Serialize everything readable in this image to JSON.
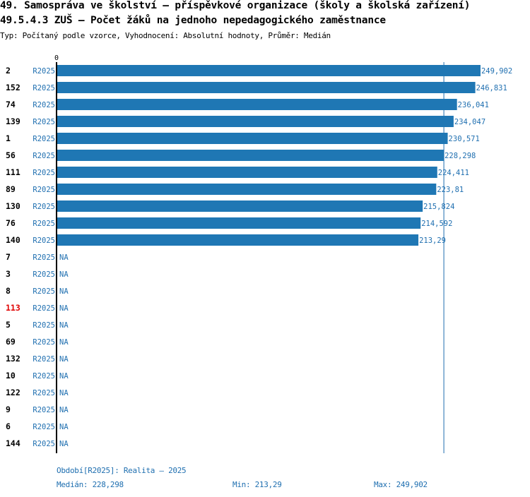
{
  "header": {
    "title_line1": "49. Samospráva ve školství – příspěvkové organizace (školy a školská zařízení)",
    "title_line2": "49.5.4.3 ZUŠ – Počet žáků na jednoho nepedagogického zaměstnance",
    "subtitle": "Typ: Počítaný podle vzorce, Vyhodnocení: Absolutní hodnoty, Průměr: Medián"
  },
  "chart_data": {
    "type": "bar",
    "orientation": "horizontal",
    "axis_zero_label": "0",
    "xlim": [
      0,
      252
    ],
    "series_label": "R2025",
    "median": 228.298,
    "highlight_color": "#e00000",
    "bar_color": "#1f77b4",
    "label_color": "#1f6fb0",
    "rows": [
      {
        "id": "2",
        "series": "R2025",
        "value": 249.902,
        "label": "249,902",
        "highlight": false
      },
      {
        "id": "152",
        "series": "R2025",
        "value": 246.831,
        "label": "246,831",
        "highlight": false
      },
      {
        "id": "74",
        "series": "R2025",
        "value": 236.041,
        "label": "236,041",
        "highlight": false
      },
      {
        "id": "139",
        "series": "R2025",
        "value": 234.047,
        "label": "234,047",
        "highlight": false
      },
      {
        "id": "1",
        "series": "R2025",
        "value": 230.571,
        "label": "230,571",
        "highlight": false
      },
      {
        "id": "56",
        "series": "R2025",
        "value": 228.298,
        "label": "228,298",
        "highlight": false
      },
      {
        "id": "111",
        "series": "R2025",
        "value": 224.411,
        "label": "224,411",
        "highlight": false
      },
      {
        "id": "89",
        "series": "R2025",
        "value": 223.81,
        "label": "223,81",
        "highlight": false
      },
      {
        "id": "130",
        "series": "R2025",
        "value": 215.824,
        "label": "215,824",
        "highlight": false
      },
      {
        "id": "76",
        "series": "R2025",
        "value": 214.592,
        "label": "214,592",
        "highlight": false
      },
      {
        "id": "140",
        "series": "R2025",
        "value": 213.29,
        "label": "213,29",
        "highlight": false
      },
      {
        "id": "7",
        "series": "R2025",
        "value": null,
        "label": "NA",
        "highlight": false
      },
      {
        "id": "3",
        "series": "R2025",
        "value": null,
        "label": "NA",
        "highlight": false
      },
      {
        "id": "8",
        "series": "R2025",
        "value": null,
        "label": "NA",
        "highlight": false
      },
      {
        "id": "113",
        "series": "R2025",
        "value": null,
        "label": "NA",
        "highlight": true
      },
      {
        "id": "5",
        "series": "R2025",
        "value": null,
        "label": "NA",
        "highlight": false
      },
      {
        "id": "69",
        "series": "R2025",
        "value": null,
        "label": "NA",
        "highlight": false
      },
      {
        "id": "132",
        "series": "R2025",
        "value": null,
        "label": "NA",
        "highlight": false
      },
      {
        "id": "10",
        "series": "R2025",
        "value": null,
        "label": "NA",
        "highlight": false
      },
      {
        "id": "122",
        "series": "R2025",
        "value": null,
        "label": "NA",
        "highlight": false
      },
      {
        "id": "9",
        "series": "R2025",
        "value": null,
        "label": "NA",
        "highlight": false
      },
      {
        "id": "6",
        "series": "R2025",
        "value": null,
        "label": "NA",
        "highlight": false
      },
      {
        "id": "144",
        "series": "R2025",
        "value": null,
        "label": "NA",
        "highlight": false
      }
    ]
  },
  "footer": {
    "period": "Období[R2025]: Realita – 2025",
    "median": "Medián: 228,298",
    "min": "Min: 213,29",
    "max": "Max: 249,902"
  }
}
